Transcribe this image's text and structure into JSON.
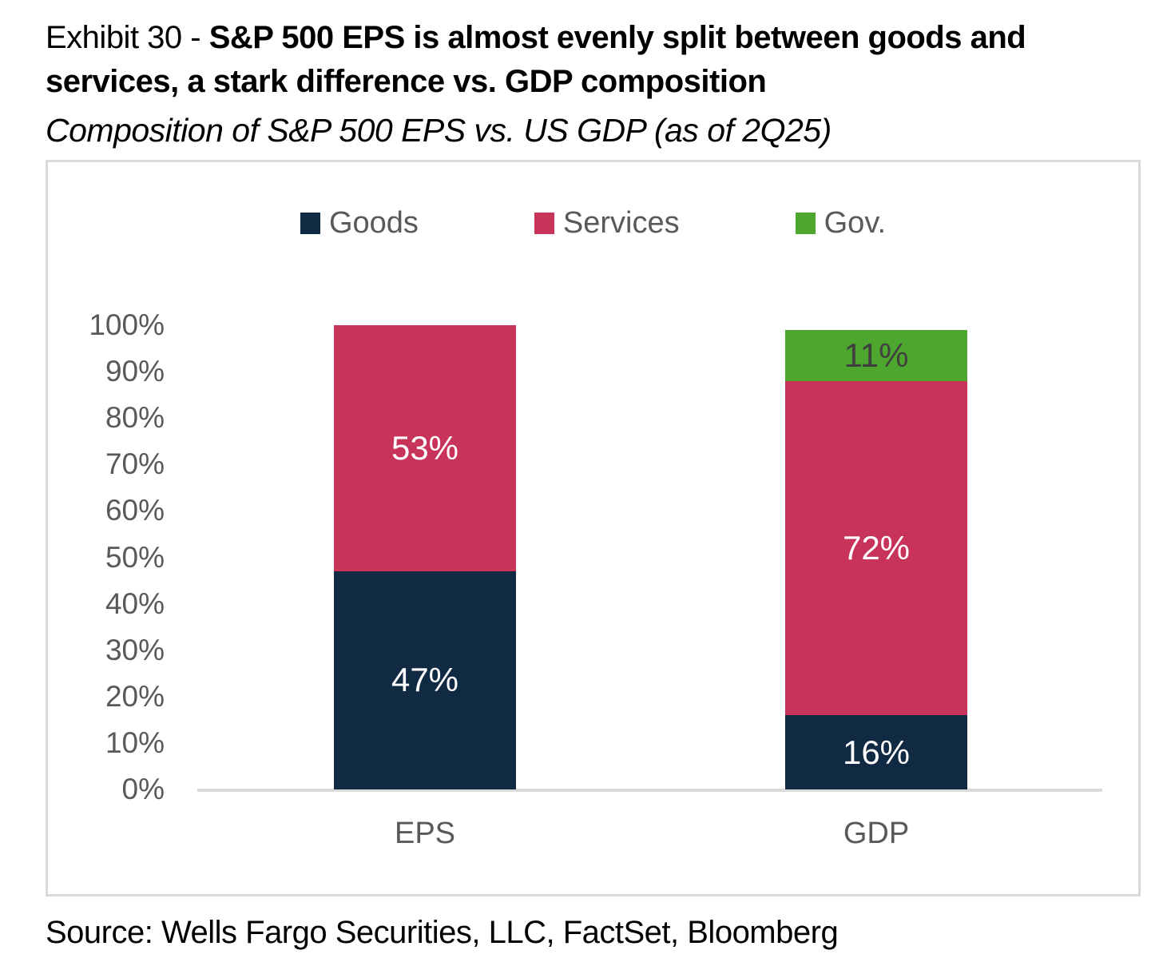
{
  "header": {
    "exhibit_prefix": "Exhibit 30 - ",
    "title_bold": "S&P 500 EPS is almost evenly split between goods and services, a stark difference vs. GDP composition",
    "subtitle": "Composition of S&P 500 EPS vs. US GDP (as of 2Q25)"
  },
  "chart_data": {
    "type": "bar",
    "variant": "stacked-column",
    "title": "Composition of S&P 500 EPS vs. US GDP (as of 2Q25)",
    "categories": [
      "EPS",
      "GDP"
    ],
    "series": [
      {
        "name": "Goods",
        "color": "#112A43",
        "label_color": "#FFFFFF",
        "values": [
          47,
          16
        ]
      },
      {
        "name": "Services",
        "color": "#C8335A",
        "label_color": "#FFFFFF",
        "values": [
          53,
          72
        ]
      },
      {
        "name": "Gov.",
        "color": "#4DA62D",
        "label_color": "#404040",
        "values": [
          0,
          11
        ]
      }
    ],
    "value_suffix": "%",
    "ylim": [
      0,
      100
    ],
    "y_tick_step": 10,
    "y_ticks": [
      "0%",
      "10%",
      "20%",
      "30%",
      "40%",
      "50%",
      "60%",
      "70%",
      "80%",
      "90%",
      "100%"
    ],
    "legend_position": "top",
    "grid": false,
    "axis_color": "#D9D9D9",
    "tick_text_color": "#595959"
  },
  "footer": {
    "source": "Source: Wells Fargo Securities, LLC, FactSet, Bloomberg"
  }
}
